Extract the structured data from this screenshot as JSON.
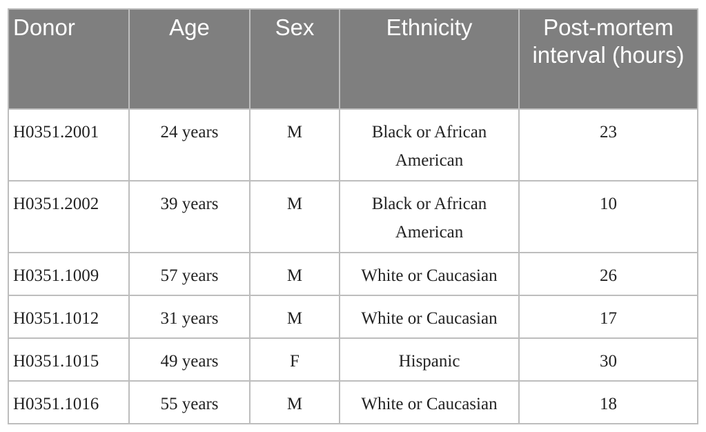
{
  "table": {
    "columns": [
      "Donor",
      "Age",
      "Sex",
      "Ethnicity",
      "Post-mortem interval (hours)"
    ],
    "rows": [
      [
        "H0351.2001",
        "24 years",
        "M",
        "Black or African American",
        23
      ],
      [
        "H0351.2002",
        "39 years",
        "M",
        "Black or African American",
        10
      ],
      [
        "H0351.1009",
        "57 years",
        "M",
        "White or Caucasian",
        26
      ],
      [
        "H0351.1012",
        "31 years",
        "M",
        "White or Caucasian",
        17
      ],
      [
        "H0351.1015",
        "49 years",
        "F",
        "Hispanic",
        30
      ],
      [
        "H0351.1016",
        "55 years",
        "M",
        "White or Caucasian",
        18
      ]
    ]
  }
}
